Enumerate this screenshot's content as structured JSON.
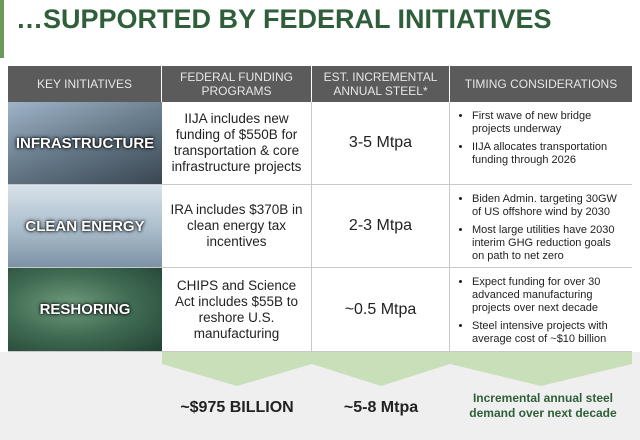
{
  "header": {
    "title": "…SUPPORTED BY FEDERAL INITIATIVES"
  },
  "table": {
    "columns": [
      "KEY INITIATIVES",
      "FEDERAL FUNDING PROGRAMS",
      "EST. INCREMENTAL ANNUAL STEEL*",
      "TIMING CONSIDERATIONS"
    ],
    "rows": [
      {
        "initiative": "INFRASTRUCTURE",
        "funding": "IIJA includes new funding of $550B for transportation & core infrastructure projects",
        "steel": "3-5 Mtpa",
        "timing": [
          "First wave of new bridge projects underway",
          "IIJA allocates transportation funding through 2026"
        ]
      },
      {
        "initiative": "CLEAN ENERGY",
        "funding": "IRA includes $370B in clean energy tax incentives",
        "steel": "2-3 Mtpa",
        "timing": [
          "Biden Admin. targeting 30GW of US offshore wind by 2030",
          "Most large utilities have 2030 interim GHG reduction goals on path to net zero"
        ]
      },
      {
        "initiative": "RESHORING",
        "funding": "CHIPS and Science Act includes $55B to reshore U.S. manufacturing",
        "steel": "~0.5 Mtpa",
        "timing": [
          "Expect funding for over 30 advanced manufacturing projects over next decade",
          "Steel intensive projects with average cost of ~$10 billion"
        ]
      }
    ]
  },
  "footer": {
    "funding_total": "~$975 BILLION",
    "steel_total": "~5-8 Mtpa",
    "note": "Incremental annual steel demand over next decade"
  }
}
